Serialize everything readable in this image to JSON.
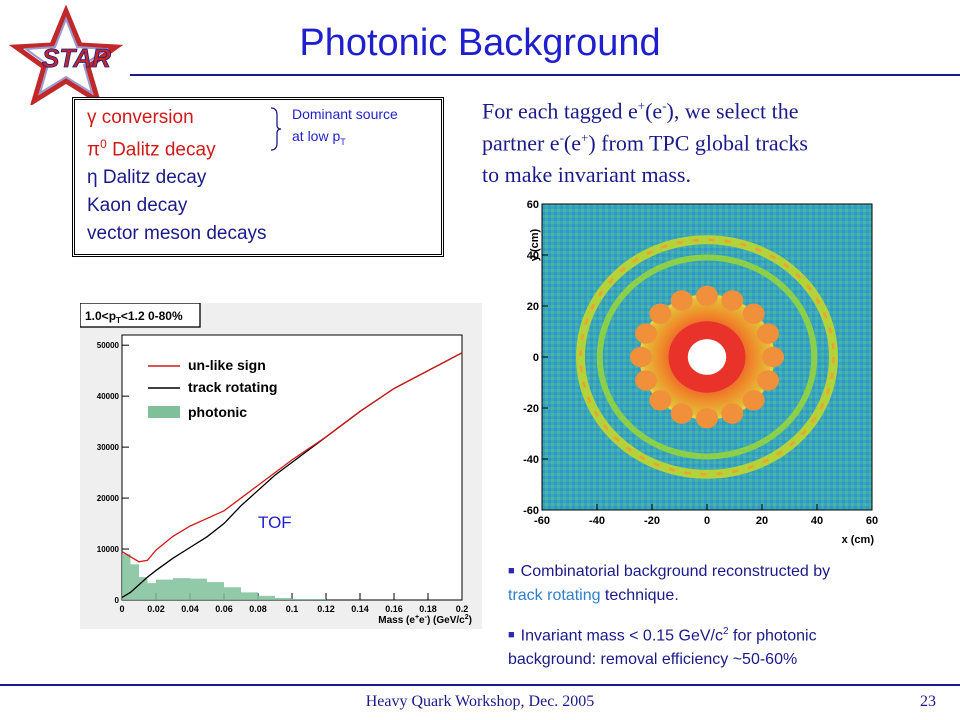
{
  "title": "Photonic Background",
  "logo_text": "STAR",
  "sources": [
    {
      "text": "γ conversion",
      "color": "#d21919"
    },
    {
      "text": "π0 Dalitz decay",
      "base": "π",
      "sup": "0",
      "rest": " Dalitz decay",
      "color": "#d21919"
    },
    {
      "text": "η Dalitz decay",
      "color": "#1a1a8a"
    },
    {
      "text": " Kaon decay",
      "color": "#1a1a8a"
    },
    {
      "text": " vector meson decays",
      "color": "#1a1a8a"
    }
  ],
  "dominant": {
    "line1": "Dominant source",
    "line2_base": "at low p",
    "line2_sub": "T"
  },
  "description": {
    "line1": {
      "a": "For each tagged e",
      "sup1": "+",
      "b": "(e",
      "sup2": "-",
      "c": "), we select the"
    },
    "line2": {
      "a": "partner e",
      "sup1": "-",
      "b": "(e",
      "sup2": "+",
      "c": ") from TPC global tracks"
    },
    "line3": "to make invariant mass."
  },
  "mass_panel": {
    "header": "1.0<p",
    "header_sub": "T",
    "header_rest": "<1.2 0-80%",
    "annotation": "TOF",
    "xlabel_a": "Mass (e",
    "xlabel_sup1": "+",
    "xlabel_b": "e",
    "xlabel_sup2": "-",
    "xlabel_c": ") (GeV/c",
    "xlabel_sup3": "2",
    "xlabel_d": ")"
  },
  "xy_panel": {
    "xlabel": "x (cm)",
    "ylabel": "y (cm)"
  },
  "bullets": [
    {
      "line1": "Combinatorial background reconstructed by",
      "line2_hl": "track rotating",
      "line2_rest": " technique."
    },
    {
      "line1_a": "Invariant mass < 0.15 GeV/c",
      "line1_sup": "2",
      "line1_b": " for photonic",
      "line2": "background:  removal efficiency ~50-60%"
    }
  ],
  "footer": "Heavy Quark Workshop, Dec. 2005",
  "page_number": "23",
  "chart_data": [
    {
      "type": "line",
      "title": "1.0<pT<1.2 0-80%",
      "xlabel": "Mass (e+e-) (GeV/c2)",
      "ylabel": "",
      "xlim": [
        0,
        0.2
      ],
      "ylim": [
        0,
        52000
      ],
      "xticks": [
        "0",
        "0.02",
        "0.04",
        "0.06",
        "0.08",
        "0.1",
        "0.12",
        "0.14",
        "0.16",
        "0.18",
        "0.2"
      ],
      "yticks": [
        "0",
        "10000",
        "20000",
        "30000",
        "40000",
        "50000"
      ],
      "legend": "top-left",
      "series": [
        {
          "name": "un-like sign",
          "color": "#d21919",
          "x": [
            0,
            0.005,
            0.01,
            0.015,
            0.02,
            0.03,
            0.04,
            0.05,
            0.06,
            0.07,
            0.08,
            0.09,
            0.1,
            0.12,
            0.14,
            0.16,
            0.18,
            0.2
          ],
          "y": [
            9500,
            8500,
            7500,
            7800,
            9800,
            12500,
            14500,
            16000,
            17500,
            20000,
            22500,
            25000,
            27500,
            32000,
            37000,
            41500,
            45000,
            48500
          ]
        },
        {
          "name": "track rotating",
          "color": "#000000",
          "x": [
            0,
            0.005,
            0.01,
            0.015,
            0.02,
            0.03,
            0.04,
            0.05,
            0.06,
            0.07,
            0.08,
            0.09,
            0.1,
            0.12,
            0.14,
            0.16,
            0.18,
            0.2
          ],
          "y": [
            500,
            1500,
            3000,
            4500,
            5800,
            8200,
            10300,
            12400,
            15000,
            18500,
            21500,
            24500,
            27000,
            32000,
            37000,
            41500,
            45000,
            48500
          ]
        },
        {
          "name": "photonic",
          "color": "#7fbf9a",
          "x": [
            0,
            0.005,
            0.01,
            0.015,
            0.02,
            0.03,
            0.04,
            0.05,
            0.06,
            0.07,
            0.08,
            0.09,
            0.1,
            0.12,
            0.14,
            0.16,
            0.18,
            0.2
          ],
          "y": [
            9000,
            7000,
            4500,
            3300,
            4000,
            4300,
            4200,
            3500,
            2500,
            1500,
            800,
            400,
            200,
            0,
            0,
            0,
            0,
            0
          ]
        }
      ]
    },
    {
      "type": "heatmap",
      "title": "",
      "xlabel": "x (cm)",
      "ylabel": "y (cm)",
      "xlim": [
        -60,
        60
      ],
      "ylim": [
        -60,
        60
      ],
      "xticks": [
        "-60",
        "-40",
        "-20",
        "0",
        "20",
        "40",
        "60"
      ],
      "yticks": [
        "-60",
        "-40",
        "-20",
        "0",
        "20",
        "40",
        "60"
      ],
      "rings_radius_cm": [
        46,
        39,
        24,
        14
      ],
      "hole_radius_cm": 7
    }
  ]
}
